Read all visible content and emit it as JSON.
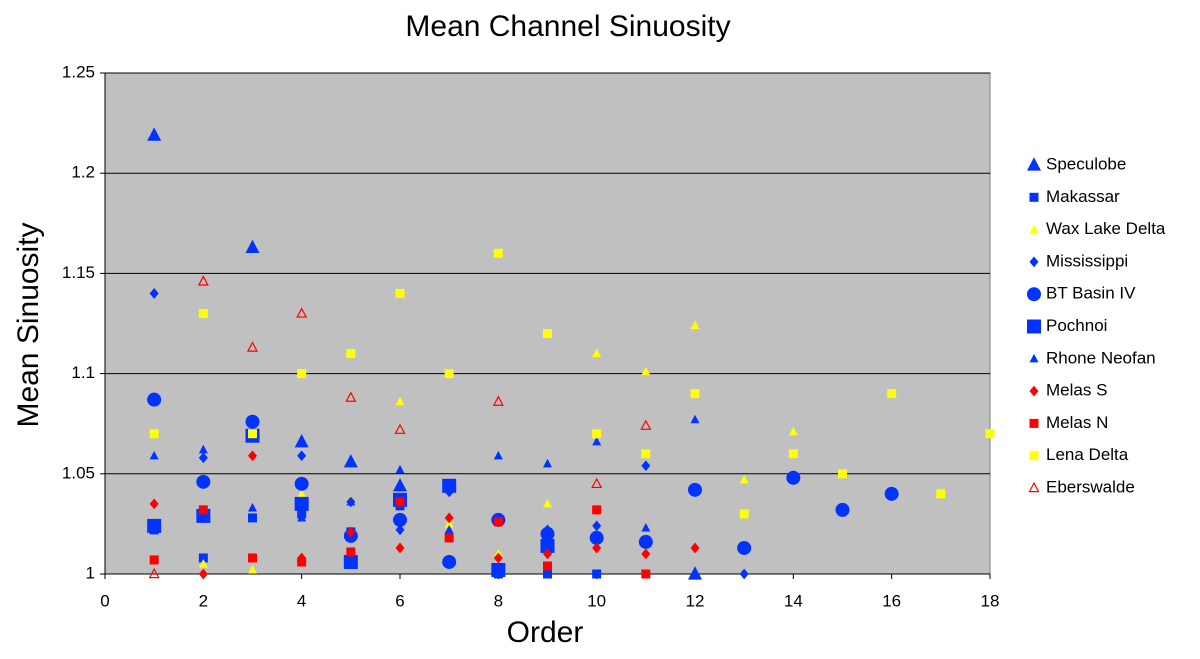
{
  "chart_data": {
    "type": "scatter",
    "title": "Mean Channel Sinuosity",
    "x_label": "Order",
    "y_label": "Mean Sinuosity",
    "xlim": [
      0,
      18
    ],
    "xticks": [
      0,
      2,
      4,
      6,
      8,
      10,
      12,
      14,
      16,
      18
    ],
    "ylim": [
      1,
      1.25
    ],
    "yticks": [
      1,
      1.05,
      1.1,
      1.15,
      1.2,
      1.25
    ],
    "grid": true,
    "legend": "right",
    "series": [
      {
        "name": "Speculobe",
        "color": "#0033ff",
        "marker": "triangle",
        "size": "large",
        "x": [
          1,
          3,
          4,
          5,
          6,
          12
        ],
        "values": [
          1.219,
          1.163,
          1.066,
          1.056,
          1.044,
          1.0
        ]
      },
      {
        "name": "Makassar",
        "color": "#0033ff",
        "marker": "square",
        "size": "small",
        "x": [
          1,
          2,
          3,
          4,
          5,
          6,
          8,
          9,
          10
        ],
        "values": [
          1.022,
          1.008,
          1.028,
          1.03,
          1.021,
          1.034,
          1.0,
          1.0,
          1.0
        ]
      },
      {
        "name": "Wax Lake Delta",
        "color": "#ffff00",
        "marker": "triangle",
        "size": "small",
        "x": [
          2,
          3,
          4,
          5,
          6,
          7,
          8,
          9,
          10,
          11,
          12,
          13,
          14
        ],
        "values": [
          1.005,
          1.002,
          1.04,
          1.037,
          1.086,
          1.025,
          1.01,
          1.035,
          1.11,
          1.101,
          1.124,
          1.047,
          1.071
        ]
      },
      {
        "name": "Mississippi",
        "color": "#0033ff",
        "marker": "diamond",
        "size": "small",
        "x": [
          1,
          2,
          4,
          5,
          6,
          7,
          8,
          9,
          10,
          11,
          13
        ],
        "values": [
          1.14,
          1.058,
          1.059,
          1.036,
          1.022,
          1.041,
          1.026,
          1.022,
          1.024,
          1.054,
          1.0
        ]
      },
      {
        "name": "BT Basin IV",
        "color": "#0033ff",
        "marker": "circle",
        "size": "large",
        "x": [
          1,
          2,
          3,
          4,
          5,
          6,
          7,
          8,
          9,
          10,
          11,
          12,
          13,
          14,
          15,
          16
        ],
        "values": [
          1.087,
          1.046,
          1.076,
          1.045,
          1.019,
          1.027,
          1.006,
          1.027,
          1.02,
          1.018,
          1.016,
          1.042,
          1.013,
          1.048,
          1.032,
          1.04
        ]
      },
      {
        "name": "Pochnoi",
        "color": "#0033ff",
        "marker": "square",
        "size": "large",
        "x": [
          1,
          2,
          3,
          4,
          5,
          6,
          7,
          8,
          9
        ],
        "values": [
          1.024,
          1.029,
          1.069,
          1.035,
          1.006,
          1.037,
          1.044,
          1.002,
          1.014
        ]
      },
      {
        "name": "Rhone Neofan",
        "color": "#0033ff",
        "marker": "triangle",
        "size": "small",
        "x": [
          1,
          2,
          3,
          4,
          5,
          6,
          7,
          8,
          9,
          10,
          11,
          12
        ],
        "values": [
          1.059,
          1.062,
          1.033,
          1.028,
          1.036,
          1.052,
          1.022,
          1.059,
          1.055,
          1.066,
          1.023,
          1.077
        ]
      },
      {
        "name": "Melas S",
        "color": "#ff0000",
        "marker": "diamond",
        "size": "small",
        "x": [
          1,
          2,
          3,
          4,
          5,
          6,
          7,
          8,
          9,
          10,
          11,
          12
        ],
        "values": [
          1.035,
          1.0,
          1.059,
          1.008,
          1.021,
          1.013,
          1.028,
          1.008,
          1.01,
          1.013,
          1.01,
          1.013
        ]
      },
      {
        "name": "Melas N",
        "color": "#ff0000",
        "marker": "square",
        "size": "small",
        "x": [
          1,
          2,
          3,
          4,
          5,
          6,
          7,
          8,
          9,
          10,
          11
        ],
        "values": [
          1.007,
          1.032,
          1.008,
          1.006,
          1.011,
          1.036,
          1.018,
          1.026,
          1.004,
          1.032,
          1.0
        ]
      },
      {
        "name": "Lena Delta",
        "color": "#ffff00",
        "marker": "square",
        "size": "small",
        "x": [
          1,
          2,
          3,
          4,
          5,
          6,
          7,
          8,
          9,
          10,
          11,
          12,
          13,
          14,
          15,
          16,
          17,
          18
        ],
        "values": [
          1.07,
          1.13,
          1.07,
          1.1,
          1.11,
          1.14,
          1.1,
          1.16,
          1.12,
          1.07,
          1.06,
          1.09,
          1.03,
          1.06,
          1.05,
          1.09,
          1.04,
          1.07
        ]
      },
      {
        "name": "Eberswalde",
        "color": "#ff0000",
        "marker": "open-triangle",
        "size": "small",
        "x": [
          1,
          2,
          3,
          4,
          5,
          6,
          8,
          10,
          11
        ],
        "values": [
          1.0,
          1.146,
          1.113,
          1.13,
          1.088,
          1.072,
          1.086,
          1.045,
          1.074
        ]
      }
    ]
  }
}
